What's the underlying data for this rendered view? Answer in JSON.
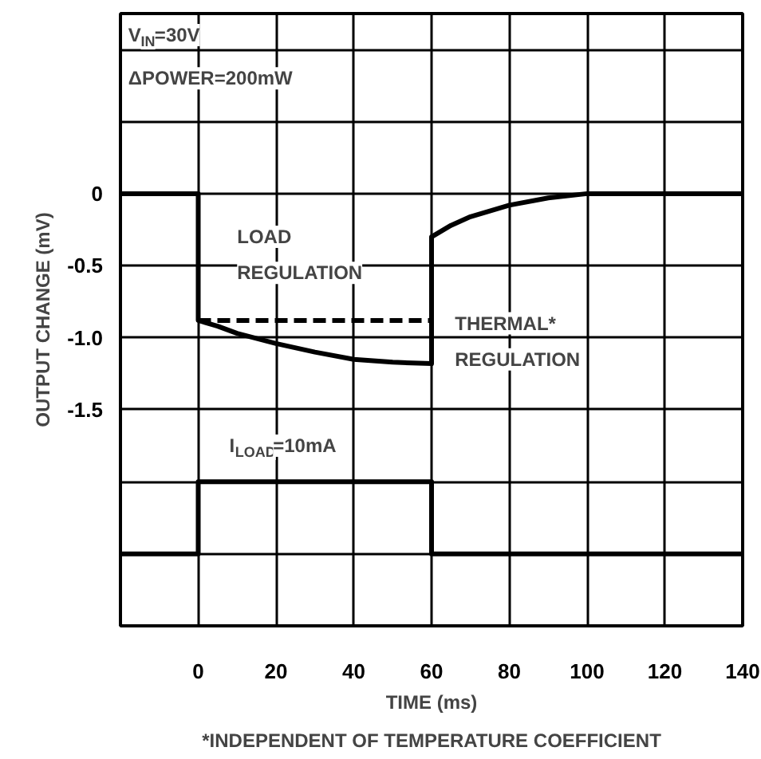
{
  "chart_data": {
    "type": "line",
    "xlabel": "TIME (ms)",
    "ylabel": "OUTPUT CHANGE (mV)",
    "xlim": [
      -20,
      140
    ],
    "ylim": [
      -3.0,
      1.25
    ],
    "xticks": [
      {
        "value": -20,
        "label": null
      },
      0,
      20,
      40,
      60,
      80,
      100,
      120,
      140
    ],
    "yticks": [
      {
        "value": 1.0,
        "label": null
      },
      {
        "value": 0.5,
        "label": null
      },
      0,
      -0.5,
      {
        "value": -1.0,
        "label": "-1.0"
      },
      -1.5,
      {
        "value": -2.0,
        "label": null
      },
      {
        "value": -2.5,
        "label": null
      }
    ],
    "grid": true,
    "marker": "none",
    "series": [
      {
        "color": "#000000",
        "line_style": "solid",
        "x": [
          -20,
          0,
          0,
          5,
          10,
          20,
          30,
          40,
          50,
          60,
          60,
          65,
          70,
          80,
          90,
          100,
          110,
          140
        ],
        "values": [
          0,
          0,
          -0.88,
          -0.92,
          -0.97,
          -1.04,
          -1.1,
          -1.15,
          -1.17,
          -1.18,
          -0.3,
          -0.22,
          -0.16,
          -0.08,
          -0.03,
          0,
          0,
          0
        ]
      },
      {
        "color": "#000000",
        "line_style": "dashed",
        "x": [
          0,
          60
        ],
        "values": [
          -0.88,
          -0.88
        ]
      },
      {
        "color": "#000000",
        "line_style": "solid",
        "x": [
          -20,
          0,
          0,
          60,
          60,
          140
        ],
        "values": [
          -2.5,
          -2.5,
          -2.0,
          -2.0,
          -2.5,
          -2.5
        ]
      }
    ],
    "annotations": [
      "V$_{IN}$=30V",
      "ΔPOWER=200mW",
      "LOAD",
      "REGULATION",
      "THERMAL*",
      "REGULATION",
      "I$_{LOAD}$=10mA",
      "*INDEPENDENT OF TEMPERATURE COEFFICIENT"
    ]
  }
}
